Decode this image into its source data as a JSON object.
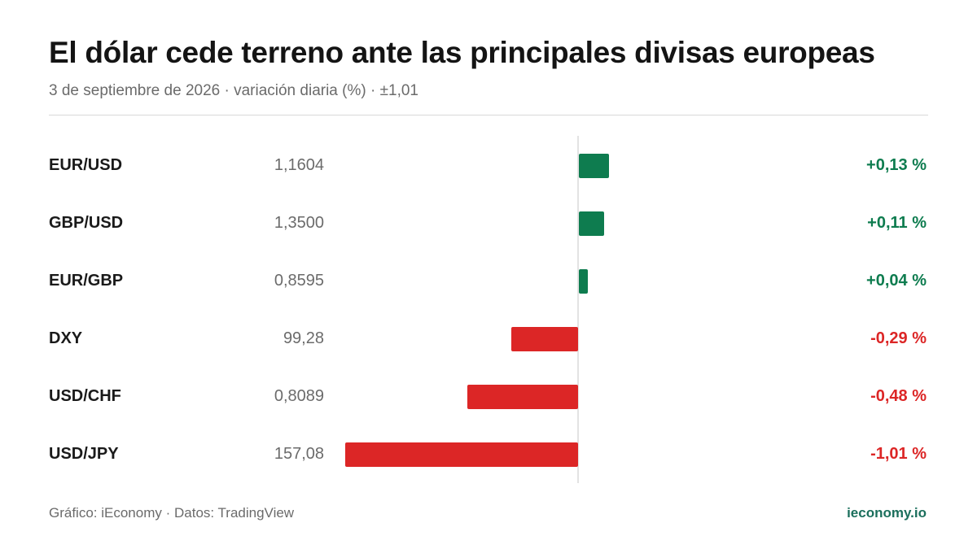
{
  "header": {
    "title": "El dólar cede terreno ante las principales divisas europeas",
    "subtitle": "3 de septiembre de 2026 · variación diaria (%) · ±1,01"
  },
  "footer": {
    "credit": "Gráfico: iEconomy · Datos: TradingView",
    "brand": "ieconomy.io"
  },
  "colors": {
    "positive": "#0e7c4f",
    "negative": "#dc2626"
  },
  "chart_data": {
    "type": "bar",
    "orientation": "horizontal",
    "categories": [
      "EUR/USD",
      "GBP/USD",
      "EUR/GBP",
      "DXY",
      "USD/CHF",
      "USD/JPY"
    ],
    "prices": [
      "1,1604",
      "1,3500",
      "0,8595",
      "99,28",
      "0,8089",
      "157,08"
    ],
    "values": [
      0.13,
      0.11,
      0.04,
      -0.29,
      -0.48,
      -1.01
    ],
    "value_labels": [
      "+0,13 %",
      "+0,11 %",
      "+0,04 %",
      "-0,29 %",
      "-0,48 %",
      "-1,01 %"
    ],
    "xlim": [
      -1.01,
      1.01
    ],
    "grid": false,
    "legend": "none"
  }
}
